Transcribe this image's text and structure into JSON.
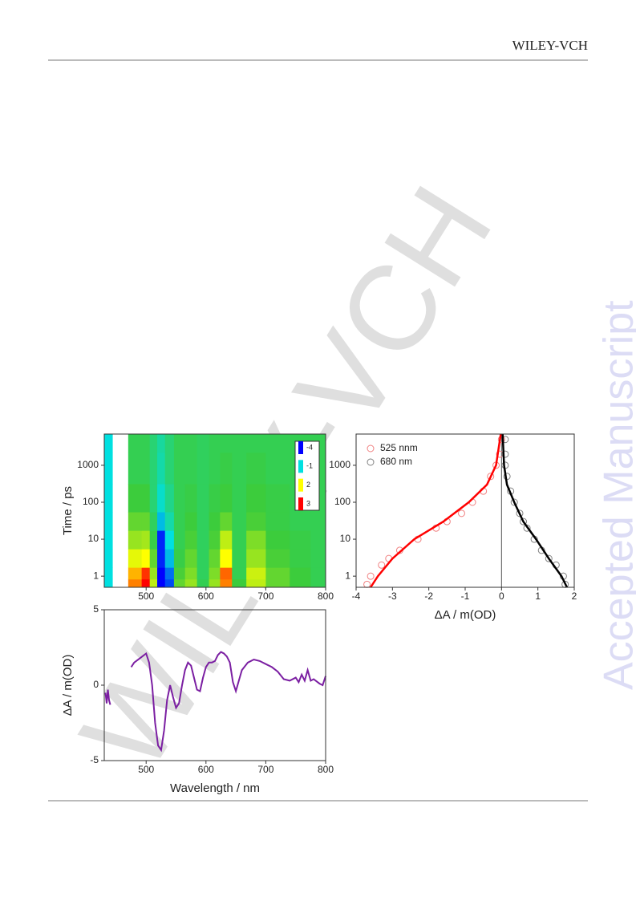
{
  "header": {
    "title": "WILEY-VCH"
  },
  "watermark": "WILEY-VCH",
  "side_text": "Accepted Manuscript",
  "chart_data": [
    {
      "type": "heatmap",
      "ylabel": "Time / ps",
      "log_y": true,
      "xlim": [
        430,
        800
      ],
      "ylim": [
        0.5,
        7000
      ],
      "xticks": [
        500,
        600,
        700,
        800
      ],
      "yticks": [
        1,
        10,
        100,
        1000
      ],
      "x": [
        432,
        455,
        485,
        500,
        512,
        525,
        538,
        555,
        575,
        595,
        615,
        632,
        655,
        680,
        720,
        760,
        790
      ],
      "y": [
        0.7,
        1,
        3,
        10,
        30,
        100,
        1000,
        5000
      ],
      "z": [
        [
          -1,
          null,
          2.5,
          3,
          1.5,
          -4,
          -3,
          0.8,
          1.2,
          0.3,
          1.2,
          2.5,
          0.5,
          1.5,
          0.8,
          0.5,
          0.3
        ],
        [
          -1,
          null,
          2.3,
          2.8,
          1.2,
          -4,
          -2.5,
          0.6,
          1.0,
          0.2,
          1.0,
          2.6,
          0.3,
          1.6,
          0.8,
          0.5,
          0.3
        ],
        [
          -1,
          null,
          1.8,
          2,
          0.8,
          -3.5,
          -1.5,
          0.4,
          0.8,
          0.2,
          0.8,
          2,
          0.3,
          1.2,
          0.6,
          0.4,
          0.3
        ],
        [
          -1,
          null,
          1.2,
          1.3,
          0.4,
          -3.5,
          -1,
          0.3,
          0.6,
          0.2,
          0.6,
          1.5,
          0.3,
          1.0,
          0.5,
          0.4,
          0.3
        ],
        [
          -1,
          null,
          0.8,
          0.8,
          0.2,
          -1.5,
          -0.5,
          0.3,
          0.5,
          0.2,
          0.5,
          0.8,
          0.3,
          0.6,
          0.4,
          0.3,
          0.3
        ],
        [
          -1,
          null,
          0.5,
          0.5,
          0,
          -0.8,
          -0.2,
          0.3,
          0.4,
          0.2,
          0.4,
          0.5,
          0.3,
          0.5,
          0.4,
          0.3,
          0.3
        ],
        [
          -1,
          null,
          0.3,
          0.3,
          0,
          -0.5,
          0,
          0.3,
          0.3,
          0.2,
          0.3,
          0.4,
          0.3,
          0.4,
          0.3,
          0.3,
          0.3
        ],
        [
          -1,
          null,
          0.3,
          0.3,
          0,
          -0.4,
          0,
          0.3,
          0.3,
          0.2,
          0.3,
          0.3,
          0.3,
          0.3,
          0.3,
          0.3,
          0.3
        ]
      ],
      "colorscale": [
        [
          -4,
          "#0000ff"
        ],
        [
          -1,
          "#00e0e0"
        ],
        [
          0.5,
          "#3ccc3c"
        ],
        [
          2,
          "#ffff00"
        ],
        [
          3,
          "#ff0000"
        ]
      ],
      "colorbar_ticks": [
        -4,
        -1,
        2,
        3
      ]
    },
    {
      "type": "line",
      "xlabel": "Wavelength / nm",
      "ylabel": "ΔA / m(OD)",
      "color": "#7b1fa2",
      "xlim": [
        430,
        800
      ],
      "ylim": [
        -5,
        5
      ],
      "xticks": [
        500,
        600,
        700,
        800
      ],
      "yticks": [
        -5,
        0,
        5
      ],
      "x": [
        432,
        434,
        436,
        438,
        440,
        460,
        475,
        480,
        490,
        500,
        505,
        510,
        515,
        520,
        525,
        530,
        535,
        540,
        545,
        550,
        555,
        560,
        565,
        570,
        575,
        580,
        585,
        590,
        595,
        600,
        605,
        610,
        615,
        620,
        625,
        630,
        635,
        640,
        645,
        650,
        655,
        660,
        670,
        680,
        690,
        700,
        710,
        720,
        730,
        740,
        750,
        755,
        760,
        765,
        770,
        775,
        780,
        790,
        795,
        800
      ],
      "values": [
        -0.5,
        -1.2,
        -0.3,
        -1.0,
        -1.3,
        null,
        1.2,
        1.5,
        1.8,
        2.1,
        1.5,
        0.0,
        -2.5,
        -4.0,
        -4.3,
        -3.0,
        -1.0,
        0.0,
        -0.8,
        -1.5,
        -1.2,
        0.0,
        1.0,
        1.5,
        1.3,
        0.5,
        -0.3,
        -0.4,
        0.5,
        1.2,
        1.5,
        1.5,
        1.6,
        2.0,
        2.2,
        2.1,
        1.9,
        1.5,
        0.2,
        -0.4,
        0.3,
        1.0,
        1.5,
        1.7,
        1.6,
        1.4,
        1.2,
        0.9,
        0.4,
        0.3,
        0.5,
        0.2,
        0.7,
        0.3,
        1.0,
        0.3,
        0.4,
        0.1,
        0.0,
        0.6
      ]
    },
    {
      "type": "scatter",
      "xlabel": "ΔA / m(OD)",
      "log_y": true,
      "vline": 0,
      "xlim": [
        -4,
        2
      ],
      "ylim": [
        0.5,
        7000
      ],
      "xticks": [
        -4,
        -3,
        -2,
        -1,
        0,
        1,
        2
      ],
      "yticks": [
        1,
        10,
        100,
        1000
      ],
      "series": [
        {
          "name": "525 nnm",
          "color": "#f08080",
          "fit_color": "#ff0000",
          "x": [
            -3.7,
            -3.6,
            -3.3,
            -3.1,
            -2.8,
            -2.3,
            -1.8,
            -1.5,
            -1.1,
            -0.8,
            -0.5,
            -0.3,
            -0.15,
            -0.05,
            0.0
          ],
          "y": [
            0.6,
            1,
            2,
            3,
            5,
            10,
            20,
            30,
            50,
            100,
            200,
            500,
            1000,
            2000,
            5000
          ],
          "fit_x": [
            -3.6,
            -3.4,
            -3.0,
            -2.4,
            -1.6,
            -0.9,
            -0.4,
            -0.15,
            -0.02
          ],
          "fit_y": [
            0.5,
            1,
            3,
            10,
            30,
            100,
            300,
            1000,
            7000
          ]
        },
        {
          "name": "680 nm",
          "color": "#808080",
          "fit_color": "#000000",
          "x": [
            1.75,
            1.7,
            1.5,
            1.3,
            1.1,
            0.9,
            0.7,
            0.6,
            0.5,
            0.35,
            0.25,
            0.15,
            0.1,
            0.1,
            0.1
          ],
          "y": [
            0.6,
            1,
            2,
            3,
            5,
            10,
            20,
            30,
            50,
            100,
            200,
            500,
            1000,
            2000,
            5000
          ],
          "fit_x": [
            1.8,
            1.65,
            1.3,
            0.95,
            0.6,
            0.35,
            0.15,
            0.07,
            0.03
          ],
          "fit_y": [
            0.5,
            1,
            3,
            10,
            30,
            100,
            300,
            1000,
            7000
          ]
        }
      ]
    }
  ]
}
